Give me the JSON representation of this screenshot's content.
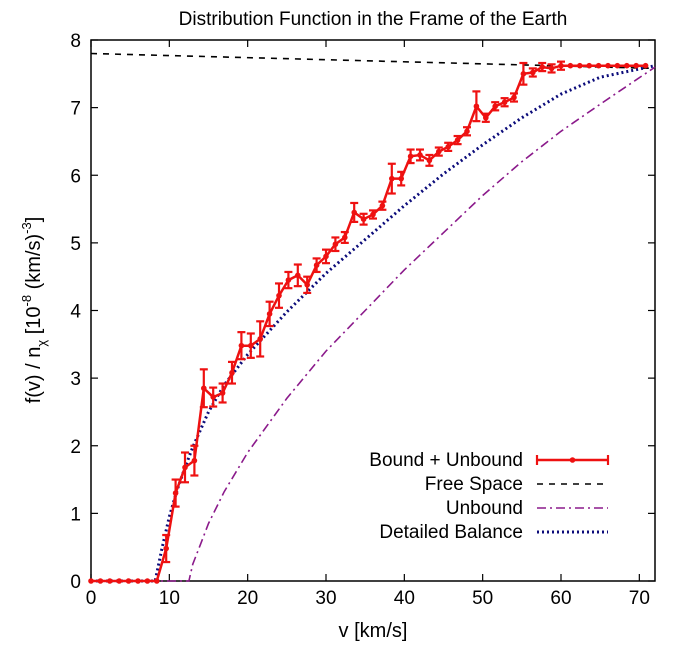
{
  "chart_data": {
    "type": "line",
    "title": "Distribution Function in the Frame of the Earth",
    "xlabel": "v [km/s]",
    "ylabel": {
      "base": "f(v) / n",
      "subscript": "χ",
      "mid1": " [10",
      "sup1": "-8",
      "mid2": " (km/s)",
      "sup2": "-3",
      "end": "]"
    },
    "xlim": [
      0,
      72
    ],
    "ylim": [
      0,
      8
    ],
    "xticks": [
      0,
      10,
      20,
      30,
      40,
      50,
      60,
      70
    ],
    "yticks": [
      0,
      1,
      2,
      3,
      4,
      5,
      6,
      7,
      8
    ],
    "legend_position": "bottom-right",
    "series": [
      {
        "name": "Bound + Unbound",
        "style": "solid-points-errorbars",
        "color": "#ee1111",
        "x": [
          0.0,
          1.2,
          2.4,
          3.6,
          4.8,
          6.0,
          7.2,
          8.4,
          9.6,
          10.8,
          12.0,
          13.2,
          14.4,
          15.6,
          16.8,
          18.0,
          19.2,
          20.4,
          21.6,
          22.8,
          24.0,
          25.2,
          26.4,
          27.6,
          28.8,
          30.0,
          31.2,
          32.4,
          33.6,
          34.8,
          36.0,
          37.2,
          38.4,
          39.6,
          40.8,
          42.0,
          43.2,
          44.4,
          45.6,
          46.8,
          48.0,
          49.2,
          50.4,
          51.6,
          52.8,
          54.0,
          55.2,
          56.4,
          57.6,
          58.8,
          60.0,
          61.2,
          62.4,
          63.6,
          64.8,
          66.0,
          67.2,
          68.4,
          69.6,
          70.8
        ],
        "y": [
          0.0,
          0.0,
          0.0,
          0.0,
          0.0,
          0.0,
          0.0,
          0.0,
          0.48,
          1.3,
          1.68,
          1.78,
          2.85,
          2.72,
          2.78,
          3.08,
          3.48,
          3.48,
          3.58,
          3.95,
          4.22,
          4.45,
          4.52,
          4.38,
          4.67,
          4.8,
          4.98,
          5.08,
          5.45,
          5.35,
          5.42,
          5.55,
          5.95,
          5.95,
          6.28,
          6.3,
          6.22,
          6.35,
          6.42,
          6.52,
          6.65,
          7.02,
          6.85,
          7.02,
          7.08,
          7.15,
          7.5,
          7.52,
          7.6,
          7.58,
          7.62,
          7.62,
          7.62,
          7.62,
          7.62,
          7.62,
          7.62,
          7.62,
          7.62,
          7.62
        ],
        "yerr": [
          0,
          0,
          0,
          0,
          0,
          0,
          0,
          0,
          0.2,
          0.2,
          0.22,
          0.22,
          0.28,
          0.14,
          0.14,
          0.16,
          0.2,
          0.18,
          0.26,
          0.18,
          0.18,
          0.12,
          0.16,
          0.12,
          0.1,
          0.1,
          0.1,
          0.08,
          0.14,
          0.08,
          0.06,
          0.06,
          0.22,
          0.1,
          0.1,
          0.08,
          0.08,
          0.06,
          0.06,
          0.06,
          0.06,
          0.22,
          0.06,
          0.06,
          0.06,
          0.06,
          0.16,
          0.06,
          0.06,
          0.06,
          0.06,
          0,
          0,
          0,
          0,
          0,
          0,
          0,
          0,
          0
        ]
      },
      {
        "name": "Free Space",
        "style": "dashed",
        "color": "#000000",
        "x": [
          0,
          72
        ],
        "y": [
          7.8,
          7.58
        ]
      },
      {
        "name": "Unbound",
        "style": "dash-dot",
        "color": "#8b1a8b",
        "x": [
          0,
          12.5,
          13,
          14,
          15,
          17,
          20,
          25,
          30,
          35,
          40,
          45,
          50,
          55,
          60,
          65,
          72
        ],
        "y": [
          0,
          0,
          0.25,
          0.55,
          0.85,
          1.32,
          1.9,
          2.7,
          3.4,
          4.0,
          4.6,
          5.15,
          5.7,
          6.2,
          6.65,
          7.05,
          7.6
        ]
      },
      {
        "name": "Detailed Balance",
        "style": "dotted",
        "color": "#0b0b7a",
        "x": [
          0,
          8.2,
          9,
          10,
          11,
          12,
          13,
          15,
          17,
          20,
          25,
          30,
          35,
          40,
          45,
          50,
          55,
          60,
          65,
          72
        ],
        "y": [
          0,
          0,
          0.45,
          0.95,
          1.35,
          1.68,
          1.98,
          2.5,
          2.9,
          3.35,
          3.98,
          4.55,
          5.05,
          5.55,
          6.02,
          6.45,
          6.85,
          7.2,
          7.45,
          7.62
        ]
      }
    ]
  }
}
